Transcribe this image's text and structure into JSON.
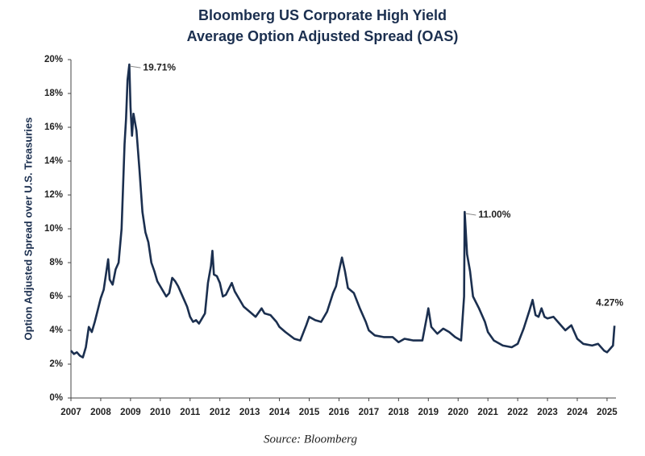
{
  "chart_data": {
    "type": "line",
    "title": [
      "Bloomberg US Corporate High Yield",
      "Average Option Adjusted Spread (OAS)"
    ],
    "ylabel": "Option Adjusted Spread over U.S. Treasuries",
    "source": "Source: Bloomberg",
    "xlim": [
      2007,
      2025.3
    ],
    "xticks": [
      2007,
      2008,
      2009,
      2010,
      2011,
      2012,
      2013,
      2014,
      2015,
      2016,
      2017,
      2018,
      2019,
      2020,
      2021,
      2022,
      2023,
      2024,
      2025
    ],
    "ylim": [
      0,
      20
    ],
    "yticks": [
      {
        "value": 0,
        "label": "0%"
      },
      {
        "value": 2,
        "label": "2%"
      },
      {
        "value": 4,
        "label": "4%"
      },
      {
        "value": 6,
        "label": "6%"
      },
      {
        "value": 8,
        "label": "8%"
      },
      {
        "value": 10,
        "label": "10%"
      },
      {
        "value": 12,
        "label": "12%"
      },
      {
        "value": 14,
        "label": "14%"
      },
      {
        "value": 16,
        "label": "16%"
      },
      {
        "value": 18,
        "label": "18%"
      },
      {
        "value": 20,
        "label": "20%"
      }
    ],
    "grid": false,
    "x": [
      2007.0,
      2007.1,
      2007.2,
      2007.3,
      2007.4,
      2007.5,
      2007.6,
      2007.7,
      2007.8,
      2007.9,
      2008.0,
      2008.1,
      2008.2,
      2008.25,
      2008.3,
      2008.4,
      2008.5,
      2008.6,
      2008.7,
      2008.8,
      2008.85,
      2008.9,
      2008.96,
      2009.0,
      2009.05,
      2009.1,
      2009.2,
      2009.3,
      2009.4,
      2009.5,
      2009.6,
      2009.7,
      2009.8,
      2009.9,
      2010.0,
      2010.1,
      2010.2,
      2010.3,
      2010.4,
      2010.5,
      2010.6,
      2010.7,
      2010.8,
      2010.9,
      2011.0,
      2011.1,
      2011.2,
      2011.3,
      2011.4,
      2011.5,
      2011.6,
      2011.7,
      2011.75,
      2011.8,
      2011.9,
      2012.0,
      2012.1,
      2012.2,
      2012.4,
      2012.5,
      2012.6,
      2012.8,
      2013.0,
      2013.2,
      2013.4,
      2013.5,
      2013.7,
      2013.9,
      2014.0,
      2014.2,
      2014.5,
      2014.7,
      2014.9,
      2015.0,
      2015.2,
      2015.4,
      2015.6,
      2015.8,
      2015.9,
      2016.0,
      2016.1,
      2016.2,
      2016.3,
      2016.5,
      2016.7,
      2016.9,
      2017.0,
      2017.2,
      2017.5,
      2017.8,
      2018.0,
      2018.2,
      2018.5,
      2018.8,
      2018.95,
      2019.0,
      2019.1,
      2019.3,
      2019.5,
      2019.7,
      2019.9,
      2020.1,
      2020.2,
      2020.22,
      2020.3,
      2020.4,
      2020.5,
      2020.7,
      2020.9,
      2021.0,
      2021.2,
      2021.5,
      2021.8,
      2022.0,
      2022.2,
      2022.4,
      2022.5,
      2022.6,
      2022.7,
      2022.8,
      2022.9,
      2023.0,
      2023.2,
      2023.4,
      2023.6,
      2023.8,
      2024.0,
      2024.2,
      2024.5,
      2024.7,
      2024.9,
      2025.0,
      2025.1,
      2025.2,
      2025.25
    ],
    "series": [
      {
        "color": "#1b2f4f",
        "values": [
          2.8,
          2.6,
          2.7,
          2.5,
          2.4,
          3.0,
          4.2,
          3.9,
          4.5,
          5.2,
          5.9,
          6.4,
          7.6,
          8.2,
          7.0,
          6.7,
          7.6,
          8.0,
          10.0,
          15.0,
          16.5,
          18.8,
          19.71,
          17.2,
          15.5,
          16.8,
          15.8,
          13.5,
          11.0,
          9.8,
          9.2,
          8.0,
          7.5,
          6.9,
          6.6,
          6.3,
          6.0,
          6.2,
          7.1,
          6.9,
          6.6,
          6.2,
          5.8,
          5.4,
          4.8,
          4.5,
          4.6,
          4.4,
          4.7,
          5.0,
          6.8,
          7.8,
          8.7,
          7.3,
          7.2,
          6.8,
          6.0,
          6.1,
          6.8,
          6.3,
          6.0,
          5.4,
          5.1,
          4.8,
          5.3,
          5.0,
          4.9,
          4.5,
          4.2,
          3.9,
          3.5,
          3.4,
          4.3,
          4.8,
          4.6,
          4.5,
          5.1,
          6.2,
          6.6,
          7.5,
          8.3,
          7.5,
          6.5,
          6.2,
          5.3,
          4.5,
          4.0,
          3.7,
          3.6,
          3.6,
          3.3,
          3.5,
          3.4,
          3.4,
          4.8,
          5.3,
          4.2,
          3.8,
          4.1,
          3.9,
          3.6,
          3.4,
          6.0,
          11.0,
          8.5,
          7.5,
          6.0,
          5.3,
          4.5,
          3.9,
          3.4,
          3.1,
          3.0,
          3.2,
          4.1,
          5.2,
          5.8,
          4.9,
          4.8,
          5.3,
          4.8,
          4.7,
          4.8,
          4.4,
          4.0,
          4.3,
          3.5,
          3.2,
          3.1,
          3.2,
          2.8,
          2.7,
          2.9,
          3.1,
          4.27
        ],
        "value_labels": [
          null,
          null,
          null,
          null,
          null,
          null,
          null,
          null,
          null,
          null,
          null,
          null,
          null,
          null,
          null,
          null,
          null,
          null,
          null,
          null,
          null,
          null,
          "19.71%",
          null,
          null,
          null,
          null,
          null,
          null,
          null,
          null,
          null,
          null,
          null,
          null,
          null,
          null,
          null,
          null,
          null,
          null,
          null,
          null,
          null,
          null,
          null,
          null,
          null,
          null,
          null,
          null,
          null,
          null,
          null,
          null,
          null,
          null,
          null,
          null,
          null,
          null,
          null,
          null,
          null,
          null,
          null,
          null,
          null,
          null,
          null,
          null,
          null,
          null,
          null,
          null,
          null,
          null,
          null,
          null,
          null,
          null,
          null,
          null,
          null,
          null,
          null,
          null,
          null,
          null,
          null,
          null,
          null,
          null,
          null,
          null,
          null,
          null,
          null,
          null,
          null,
          null,
          null,
          null,
          "11.00%",
          null,
          null,
          null,
          null,
          null,
          null,
          null,
          null,
          null,
          null,
          null,
          null,
          null,
          null,
          null,
          null,
          null,
          null,
          null,
          null,
          null,
          null,
          null,
          null,
          null,
          null,
          null,
          null,
          null,
          null,
          "4.27%"
        ]
      }
    ]
  }
}
